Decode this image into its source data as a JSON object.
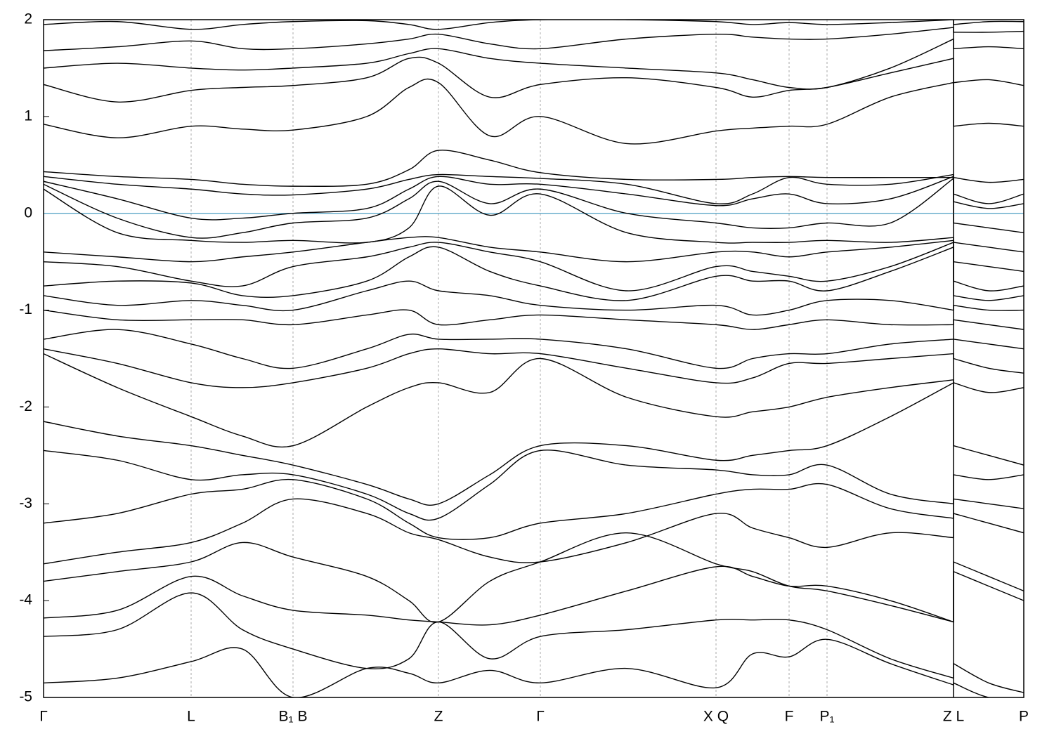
{
  "chart_data": {
    "type": "line",
    "color": "#000000",
    "xlim": [
      0,
      1395
    ],
    "ylim": [
      -5,
      2
    ],
    "yticks": [
      2,
      1,
      0,
      -1,
      -2,
      -3,
      -4,
      -5
    ],
    "xticks": [
      {
        "value": 0,
        "label": "Γ"
      },
      {
        "value": 210,
        "label": "L"
      },
      {
        "value": 355,
        "label": "B₁ B"
      },
      {
        "value": 562,
        "label": "Z"
      },
      {
        "value": 707,
        "label": "Γ"
      },
      {
        "value": 957,
        "label": "X Q"
      },
      {
        "value": 1061,
        "label": "F"
      },
      {
        "value": 1115,
        "label": "P₁"
      },
      {
        "value": 1295,
        "label": "Z L"
      },
      {
        "value": 1395,
        "label": "P"
      }
    ],
    "grid": true,
    "breaks": [
      1295
    ],
    "fermi_level": 0,
    "fermi_color": "#6aaecc",
    "x": [
      0,
      105,
      210,
      283,
      355,
      460,
      520,
      562,
      635,
      707,
      830,
      957,
      1009,
      1061,
      1115,
      1205,
      1295,
      1295,
      1345,
      1395
    ],
    "series": [
      {
        "values": [
          1.95,
          1.98,
          1.9,
          1.95,
          1.98,
          1.99,
          1.95,
          1.9,
          1.97,
          2.0,
          2.0,
          1.98,
          1.95,
          1.97,
          1.95,
          1.97,
          2.0,
          1.95,
          1.98,
          1.98
        ]
      },
      {
        "values": [
          1.68,
          1.72,
          1.78,
          1.7,
          1.7,
          1.75,
          1.8,
          1.85,
          1.75,
          1.7,
          1.8,
          1.85,
          1.82,
          1.8,
          1.8,
          1.85,
          1.92,
          1.87,
          1.87,
          1.88
        ]
      },
      {
        "values": [
          1.5,
          1.55,
          1.5,
          1.48,
          1.5,
          1.55,
          1.65,
          1.7,
          1.6,
          1.55,
          1.5,
          1.45,
          1.38,
          1.3,
          1.3,
          1.5,
          1.8,
          1.7,
          1.72,
          1.7
        ]
      },
      {
        "values": [
          1.33,
          1.15,
          1.27,
          1.3,
          1.32,
          1.4,
          1.6,
          1.55,
          1.2,
          1.33,
          1.4,
          1.3,
          1.2,
          1.27,
          1.3,
          1.45,
          1.6,
          1.35,
          1.38,
          1.32
        ]
      },
      {
        "values": [
          0.92,
          0.78,
          0.9,
          0.87,
          0.86,
          1.0,
          1.3,
          1.35,
          0.8,
          1.0,
          0.72,
          0.85,
          0.88,
          0.9,
          0.92,
          1.2,
          1.35,
          0.9,
          0.93,
          0.9
        ]
      },
      {
        "values": [
          0.43,
          0.38,
          0.35,
          0.3,
          0.28,
          0.3,
          0.45,
          0.65,
          0.55,
          0.42,
          0.35,
          0.35,
          0.37,
          0.38,
          0.37,
          0.37,
          0.37,
          0.37,
          0.32,
          0.35
        ]
      },
      {
        "values": [
          0.38,
          0.3,
          0.25,
          0.2,
          0.19,
          0.25,
          0.35,
          0.4,
          0.38,
          0.36,
          0.3,
          0.1,
          0.2,
          0.37,
          0.3,
          0.3,
          0.4,
          0.2,
          0.1,
          0.2
        ]
      },
      {
        "values": [
          0.33,
          0.15,
          -0.05,
          -0.05,
          0,
          0.05,
          0.25,
          0.38,
          0.3,
          0.3,
          0.2,
          0.08,
          0.15,
          0.2,
          0.1,
          0.15,
          0.38,
          0.12,
          0.05,
          0.1
        ]
      },
      {
        "values": [
          0.3,
          -0.05,
          -0.25,
          -0.2,
          -0.1,
          -0.05,
          0.15,
          0.33,
          0.1,
          0.25,
          0,
          -0.1,
          -0.15,
          -0.15,
          -0.1,
          -0.1,
          0.36,
          -0.1,
          -0.15,
          -0.2
        ]
      },
      {
        "values": [
          0.25,
          -0.2,
          -0.28,
          -0.3,
          -0.28,
          -0.3,
          -0.15,
          0.28,
          -0.02,
          0.2,
          -0.2,
          -0.3,
          -0.3,
          -0.3,
          -0.28,
          -0.3,
          -0.25,
          -0.3,
          -0.35,
          -0.4
        ]
      },
      {
        "values": [
          -0.4,
          -0.45,
          -0.5,
          -0.45,
          -0.4,
          -0.3,
          -0.25,
          -0.25,
          -0.35,
          -0.4,
          -0.5,
          -0.4,
          -0.4,
          -0.45,
          -0.4,
          -0.35,
          -0.28,
          -0.5,
          -0.55,
          -0.6
        ]
      },
      {
        "values": [
          -0.5,
          -0.55,
          -0.7,
          -0.75,
          -0.55,
          -0.45,
          -0.35,
          -0.3,
          -0.4,
          -0.5,
          -0.8,
          -0.55,
          -0.6,
          -0.65,
          -0.7,
          -0.55,
          -0.3,
          -0.7,
          -0.8,
          -0.75
        ]
      },
      {
        "values": [
          -0.75,
          -0.7,
          -0.72,
          -0.85,
          -0.85,
          -0.7,
          -0.45,
          -0.35,
          -0.6,
          -0.75,
          -0.9,
          -0.65,
          -0.7,
          -0.7,
          -0.8,
          -0.6,
          -0.35,
          -0.85,
          -0.9,
          -0.85
        ]
      },
      {
        "values": [
          -0.85,
          -0.95,
          -0.9,
          -0.95,
          -1.0,
          -0.8,
          -0.7,
          -0.8,
          -0.85,
          -0.95,
          -1.0,
          -0.95,
          -1.05,
          -1.0,
          -0.9,
          -0.9,
          -1.0,
          -0.95,
          -1.0,
          -1.0
        ]
      },
      {
        "values": [
          -1.0,
          -1.1,
          -1.1,
          -1.1,
          -1.15,
          -1.05,
          -1.0,
          -1.15,
          -1.1,
          -1.05,
          -1.1,
          -1.15,
          -1.2,
          -1.15,
          -1.1,
          -1.15,
          -1.15,
          -1.1,
          -1.15,
          -1.2
        ]
      },
      {
        "values": [
          -1.3,
          -1.2,
          -1.35,
          -1.5,
          -1.6,
          -1.4,
          -1.25,
          -1.3,
          -1.3,
          -1.3,
          -1.4,
          -1.6,
          -1.5,
          -1.45,
          -1.45,
          -1.35,
          -1.3,
          -1.3,
          -1.35,
          -1.4
        ]
      },
      {
        "values": [
          -1.4,
          -1.55,
          -1.75,
          -1.8,
          -1.75,
          -1.6,
          -1.45,
          -1.4,
          -1.45,
          -1.45,
          -1.6,
          -1.75,
          -1.7,
          -1.55,
          -1.55,
          -1.5,
          -1.45,
          -1.5,
          -1.6,
          -1.65
        ]
      },
      {
        "values": [
          -1.45,
          -1.8,
          -2.1,
          -2.3,
          -2.4,
          -2.0,
          -1.8,
          -1.75,
          -1.85,
          -1.5,
          -1.9,
          -2.1,
          -2.05,
          -2.0,
          -1.9,
          -1.8,
          -1.72,
          -1.75,
          -1.85,
          -1.8
        ]
      },
      {
        "values": [
          -2.15,
          -2.3,
          -2.4,
          -2.5,
          -2.6,
          -2.8,
          -2.95,
          -3.0,
          -2.7,
          -2.4,
          -2.4,
          -2.55,
          -2.5,
          -2.45,
          -2.4,
          -2.1,
          -1.75,
          -2.4,
          -2.5,
          -2.6
        ]
      },
      {
        "values": [
          -2.45,
          -2.55,
          -2.75,
          -2.7,
          -2.7,
          -2.9,
          -3.1,
          -3.15,
          -2.8,
          -2.45,
          -2.6,
          -2.65,
          -2.7,
          -2.7,
          -2.6,
          -2.9,
          -3.0,
          -2.7,
          -2.75,
          -2.7
        ]
      },
      {
        "values": [
          -3.2,
          -3.1,
          -2.9,
          -2.85,
          -2.75,
          -2.95,
          -3.2,
          -3.35,
          -3.35,
          -3.2,
          -3.1,
          -2.9,
          -2.85,
          -2.85,
          -2.8,
          -3.05,
          -3.15,
          -2.95,
          -3.0,
          -3.05
        ]
      },
      {
        "values": [
          -3.62,
          -3.5,
          -3.4,
          -3.2,
          -2.95,
          -3.1,
          -3.3,
          -3.37,
          -3.55,
          -3.6,
          -3.4,
          -3.1,
          -3.25,
          -3.35,
          -3.45,
          -3.3,
          -3.35,
          -3.1,
          -3.2,
          -3.3
        ]
      },
      {
        "values": [
          -3.8,
          -3.7,
          -3.6,
          -3.4,
          -3.55,
          -3.75,
          -4.0,
          -4.22,
          -3.8,
          -3.6,
          -3.3,
          -3.62,
          -3.7,
          -3.85,
          -3.9,
          -4.05,
          -4.22,
          -3.6,
          -3.75,
          -3.9
        ]
      },
      {
        "values": [
          -4.18,
          -4.1,
          -3.75,
          -3.95,
          -4.1,
          -4.15,
          -4.2,
          -4.22,
          -4.25,
          -4.15,
          -3.9,
          -3.65,
          -3.75,
          -3.85,
          -3.85,
          -4.0,
          -4.22,
          -3.7,
          -3.85,
          -4.0
        ]
      },
      {
        "values": [
          -4.37,
          -4.3,
          -3.92,
          -4.3,
          -4.5,
          -4.7,
          -4.6,
          -4.22,
          -4.6,
          -4.37,
          -4.3,
          -4.2,
          -4.2,
          -4.2,
          -4.3,
          -4.6,
          -4.8,
          -4.65,
          -4.85,
          -4.95
        ]
      },
      {
        "values": [
          -4.85,
          -4.8,
          -4.63,
          -4.5,
          -5.0,
          -4.7,
          -4.75,
          -4.85,
          -4.72,
          -4.85,
          -4.7,
          -4.9,
          -4.55,
          -4.58,
          -4.4,
          -4.65,
          -4.87,
          -4.85,
          -5.0,
          -5.0
        ]
      }
    ]
  }
}
